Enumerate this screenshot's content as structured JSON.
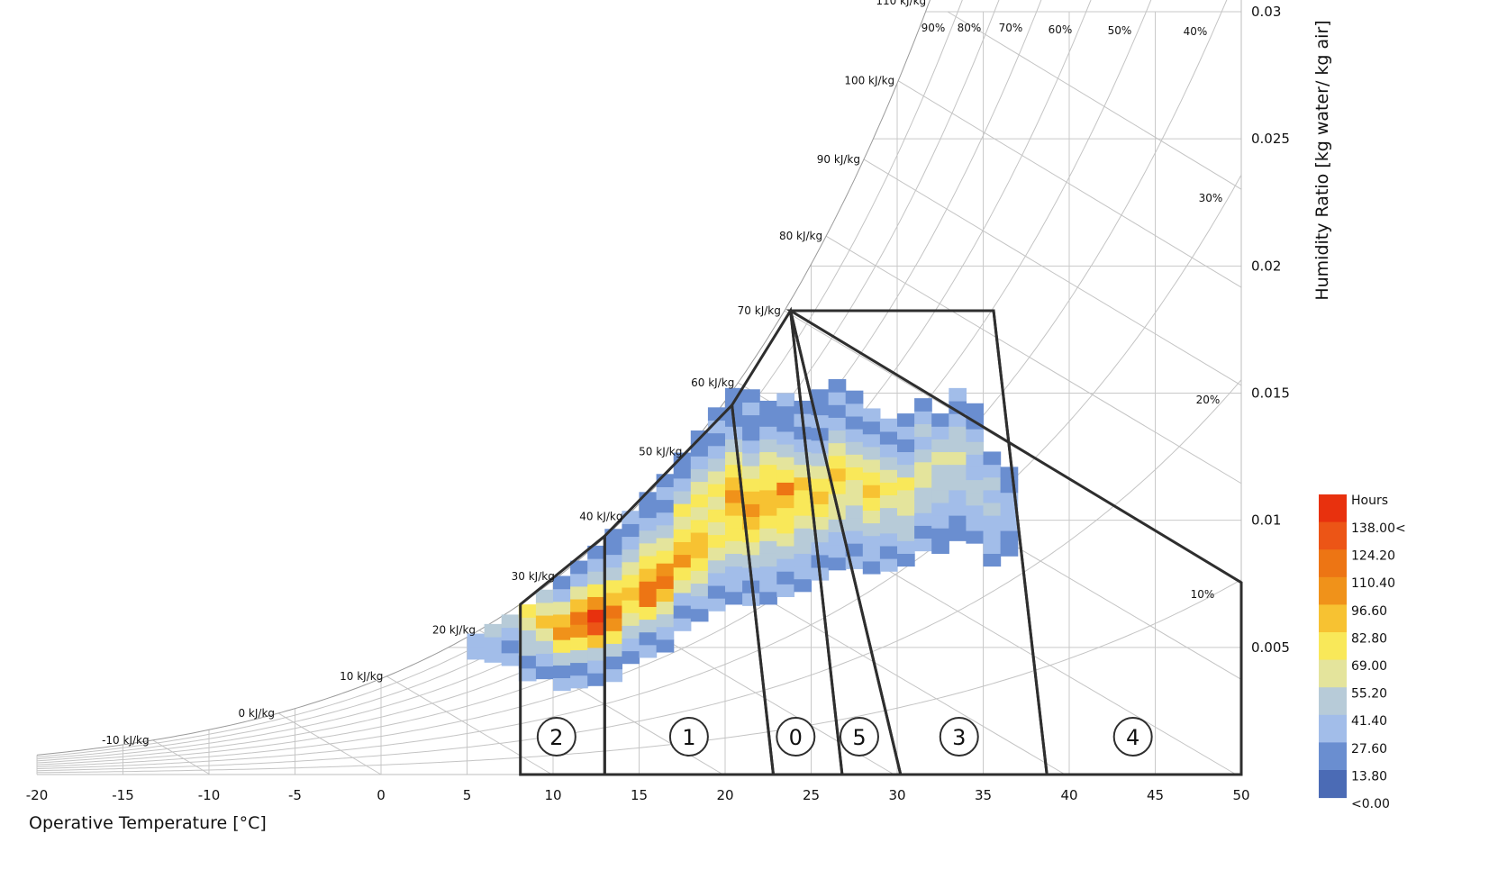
{
  "chart_data": {
    "type": "heatmap",
    "xlabel": "Operative Temperature [°C]",
    "ylabel": "Humidity Ratio [kg water/ kg air]",
    "xlim": [
      -20,
      50
    ],
    "ylim": [
      0,
      0.03
    ],
    "x_ticks": [
      "-20",
      "-15",
      "-10",
      "-5",
      "0",
      "5",
      "10",
      "15",
      "20",
      "25",
      "30",
      "35",
      "40",
      "45",
      "50"
    ],
    "y_ticks": [
      "0.005",
      "0.01",
      "0.015",
      "0.02",
      "0.025",
      "0.03"
    ],
    "y_axis_side": "right",
    "grid": true,
    "enthalpy_lines_kJkg": [
      -10,
      0,
      10,
      20,
      30,
      40,
      50,
      60,
      70,
      80,
      90,
      100,
      110
    ],
    "enthalpy_labels": [
      "-10 kJ/kg",
      "0 kJ/kg",
      "10 kJ/kg",
      "20 kJ/kg",
      "30 kJ/kg",
      "40 kJ/kg",
      "50 kJ/kg",
      "60 kJ/kg",
      "70 kJ/kg",
      "80 kJ/kg",
      "90 kJ/kg",
      "100 kJ/kg",
      "110 kJ/kg"
    ],
    "rh_curves_percent": [
      10,
      20,
      30,
      40,
      50,
      60,
      70,
      80,
      90,
      100
    ],
    "rh_labels": [
      "90%",
      "80%",
      "70%",
      "60%",
      "50%",
      "40%",
      "30%",
      "20%",
      "10%"
    ],
    "legend": {
      "title": "Hours",
      "position": "bottom-right",
      "labels": [
        "138.00<",
        "124.20",
        "110.40",
        "96.60",
        "82.80",
        "69.00",
        "55.20",
        "41.40",
        "27.60",
        "13.80",
        "<0.00"
      ],
      "colors": [
        "#e8310e",
        "#ec5516",
        "#ed7514",
        "#f0921a",
        "#f7c232",
        "#f9e859",
        "#e4e49c",
        "#b7cbd8",
        "#a2bde9",
        "#6a8ed0",
        "#4b6bb5"
      ]
    },
    "zones": [
      {
        "label": "2",
        "polygon": [
          [
            8.1,
            0
          ],
          [
            8.1,
            0.00669
          ],
          [
            13,
            0.00938
          ],
          [
            13,
            0
          ]
        ]
      },
      {
        "label": "1",
        "polygon": [
          [
            13,
            0
          ],
          [
            13,
            0.00938
          ],
          [
            20.4,
            0.01453
          ],
          [
            22.8,
            0
          ]
        ]
      },
      {
        "label": "0",
        "polygon": [
          [
            22.8,
            0
          ],
          [
            20.4,
            0.01453
          ],
          [
            23.8,
            0.01824
          ],
          [
            26.8,
            0
          ]
        ]
      },
      {
        "label": "5",
        "polygon": [
          [
            26.8,
            0
          ],
          [
            23.8,
            0.01824
          ],
          [
            30.2,
            0
          ]
        ]
      },
      {
        "label": "3",
        "polygon": [
          [
            30.2,
            0
          ],
          [
            23.8,
            0.01824
          ],
          [
            27,
            0.01824
          ],
          [
            35.6,
            0.01824
          ],
          [
            38.7,
            0
          ]
        ]
      },
      {
        "label": "4",
        "polygon": [
          [
            38.7,
            0
          ],
          [
            35.6,
            0.01824
          ],
          [
            23.8,
            0.01824
          ],
          [
            50,
            0.00755
          ],
          [
            50,
            0
          ]
        ]
      }
    ],
    "heatmap_x_bin_C": 1,
    "heatmap_columns": [
      {
        "x": 5,
        "y_max": 0.00554,
        "levels": [
          8,
          8
        ]
      },
      {
        "x": 6,
        "y_max": 0.00592,
        "levels": [
          8,
          8,
          7
        ]
      },
      {
        "x": 7,
        "y_max": 0.00629,
        "levels": [
          8,
          9,
          8,
          7
        ]
      },
      {
        "x": 8,
        "y_max": 0.00669,
        "levels": [
          8,
          9,
          7,
          7,
          6,
          5
        ]
      },
      {
        "x": 9,
        "y_max": 0.00727,
        "levels": [
          9,
          8,
          7,
          6,
          4,
          6,
          7
        ]
      },
      {
        "x": 10,
        "y_max": 0.00781,
        "levels": [
          8,
          9,
          7,
          5,
          3,
          4,
          6,
          8,
          9
        ]
      },
      {
        "x": 11,
        "y_max": 0.00841,
        "levels": [
          8,
          9,
          7,
          5,
          3,
          2,
          4,
          6,
          8,
          9
        ]
      },
      {
        "x": 12,
        "y_max": 0.009,
        "levels": [
          9,
          8,
          7,
          4,
          1,
          0,
          3,
          5,
          7,
          8,
          9
        ]
      },
      {
        "x": 13,
        "y_max": 0.00966,
        "levels": [
          8,
          9,
          7,
          5,
          3,
          2,
          4,
          5,
          7,
          8,
          9,
          9
        ]
      },
      {
        "x": 14,
        "y_max": 0.01037,
        "levels": [
          9,
          8,
          7,
          6,
          5,
          4,
          5,
          6,
          7,
          8,
          9,
          8
        ]
      },
      {
        "x": 15,
        "y_max": 0.01111,
        "levels": [
          8,
          9,
          7,
          5,
          2,
          2,
          4,
          5,
          6,
          7,
          8,
          9,
          9
        ]
      },
      {
        "x": 16,
        "y_max": 0.01182,
        "levels": [
          9,
          8,
          7,
          6,
          4,
          2,
          3,
          5,
          6,
          7,
          8,
          9,
          8,
          9
        ]
      },
      {
        "x": 17,
        "y_max": 0.01266,
        "levels": [
          8,
          9,
          8,
          6,
          5,
          3,
          4,
          5,
          6,
          5,
          7,
          8,
          9,
          9
        ]
      },
      {
        "x": 18,
        "y_max": 0.01353,
        "levels": [
          9,
          8,
          7,
          6,
          5,
          4,
          4,
          5,
          6,
          5,
          6,
          7,
          8,
          9,
          9
        ]
      },
      {
        "x": 19,
        "y_max": 0.01444,
        "levels": [
          8,
          9,
          8,
          7,
          6,
          5,
          6,
          5,
          6,
          5,
          6,
          7,
          8,
          9,
          8,
          9
        ]
      },
      {
        "x": 20,
        "y_max": 0.0152,
        "levels": [
          9,
          8,
          8,
          7,
          6,
          5,
          5,
          4,
          3,
          4,
          5,
          6,
          7,
          8,
          9,
          9,
          9
        ]
      },
      {
        "x": 21,
        "y_max": 0.01515,
        "levels": [
          8,
          9,
          8,
          7,
          6,
          5,
          4,
          3,
          4,
          5,
          6,
          7,
          8,
          9,
          9,
          8,
          9
        ]
      },
      {
        "x": 22,
        "y_max": 0.0147,
        "levels": [
          9,
          8,
          8,
          7,
          7,
          6,
          5,
          4,
          4,
          5,
          5,
          6,
          7,
          8,
          9,
          9
        ]
      },
      {
        "x": 23,
        "y_max": 0.015,
        "levels": [
          8,
          9,
          8,
          7,
          6,
          5,
          5,
          4,
          2,
          5,
          6,
          7,
          8,
          9,
          9,
          8
        ]
      },
      {
        "x": 24,
        "y_max": 0.0147,
        "levels": [
          9,
          8,
          8,
          7,
          7,
          6,
          5,
          5,
          4,
          6,
          7,
          8,
          9,
          8,
          9
        ]
      },
      {
        "x": 25,
        "y_max": 0.01515,
        "levels": [
          8,
          9,
          8,
          7,
          6,
          5,
          4,
          5,
          6,
          7,
          8,
          9,
          8,
          9,
          9
        ]
      },
      {
        "x": 26,
        "y_max": 0.01555,
        "levels": [
          9,
          8,
          8,
          7,
          6,
          6,
          5,
          4,
          5,
          6,
          7,
          8,
          9,
          8,
          9
        ]
      },
      {
        "x": 27,
        "y_max": 0.0151,
        "levels": [
          8,
          9,
          8,
          7,
          7,
          6,
          6,
          5,
          6,
          7,
          8,
          9,
          8,
          9
        ]
      },
      {
        "x": 28,
        "y_max": 0.0144,
        "levels": [
          9,
          8,
          8,
          7,
          6,
          5,
          4,
          5,
          6,
          7,
          8,
          9,
          8
        ]
      },
      {
        "x": 29,
        "y_max": 0.014,
        "levels": [
          8,
          9,
          8,
          7,
          7,
          6,
          5,
          6,
          7,
          8,
          9,
          8
        ]
      },
      {
        "x": 30,
        "y_max": 0.0142,
        "levels": [
          9,
          8,
          7,
          7,
          6,
          6,
          5,
          7,
          8,
          9,
          8,
          9
        ]
      },
      {
        "x": 31,
        "y_max": 0.0148,
        "levels": [
          8,
          9,
          8,
          7,
          7,
          6,
          6,
          7,
          8,
          7,
          8,
          9
        ]
      },
      {
        "x": 32,
        "y_max": 0.0142,
        "levels": [
          9,
          9,
          8,
          8,
          7,
          7,
          7,
          6,
          7,
          8,
          9
        ]
      },
      {
        "x": 33,
        "y_max": 0.0152,
        "levels": [
          9,
          9,
          8,
          8,
          7,
          7,
          6,
          7,
          7,
          8,
          9,
          8
        ]
      },
      {
        "x": 34,
        "y_max": 0.0146,
        "levels": [
          9,
          8,
          8,
          7,
          7,
          8,
          8,
          7,
          8,
          9,
          9
        ]
      },
      {
        "x": 35,
        "y_max": 0.0127,
        "levels": [
          9,
          8,
          8,
          8,
          7,
          8,
          7,
          8,
          9
        ]
      },
      {
        "x": 36,
        "y_max": 0.0121,
        "levels": [
          9,
          9,
          8,
          8,
          8,
          9,
          9
        ]
      }
    ]
  }
}
